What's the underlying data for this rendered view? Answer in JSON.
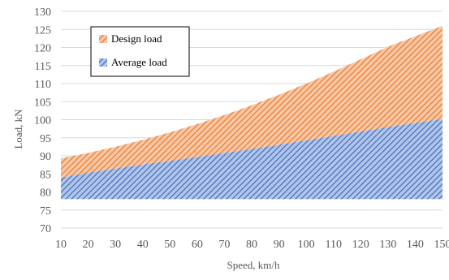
{
  "chart_data": {
    "type": "area",
    "xlabel": "Speed, km/h",
    "ylabel": "Load, kN",
    "x": [
      10,
      20,
      30,
      40,
      50,
      60,
      70,
      80,
      90,
      100,
      110,
      120,
      130,
      140,
      150
    ],
    "x_tick_labels": [
      "10",
      "20",
      "30",
      "40",
      "50",
      "60",
      "70",
      "80",
      "90",
      "100",
      "110",
      "120",
      "130",
      "140",
      "150"
    ],
    "ylim": [
      70,
      130
    ],
    "y_ticks": [
      70,
      75,
      80,
      85,
      90,
      95,
      100,
      105,
      110,
      115,
      120,
      125,
      130
    ],
    "y_tick_labels": [
      "70",
      "75",
      "80",
      "85",
      "90",
      "95",
      "100",
      "105",
      "110",
      "115",
      "120",
      "125",
      "130"
    ],
    "baseline": 78,
    "grid": true,
    "legend_position": "top-left",
    "series": [
      {
        "name": "Design load",
        "color": "#ED7D31",
        "values": [
          89.3,
          90.8,
          92.5,
          94.4,
          96.5,
          98.8,
          101.3,
          104,
          106.9,
          110,
          113.3,
          116.7,
          120.2,
          123.1,
          126
        ]
      },
      {
        "name": "Average load",
        "color": "#4472C4",
        "values": [
          84,
          85.3,
          86.5,
          87.6,
          88.6,
          89.7,
          90.8,
          91.9,
          93.1,
          94.3,
          95.5,
          96.7,
          98,
          99.1,
          100.2
        ]
      }
    ]
  }
}
